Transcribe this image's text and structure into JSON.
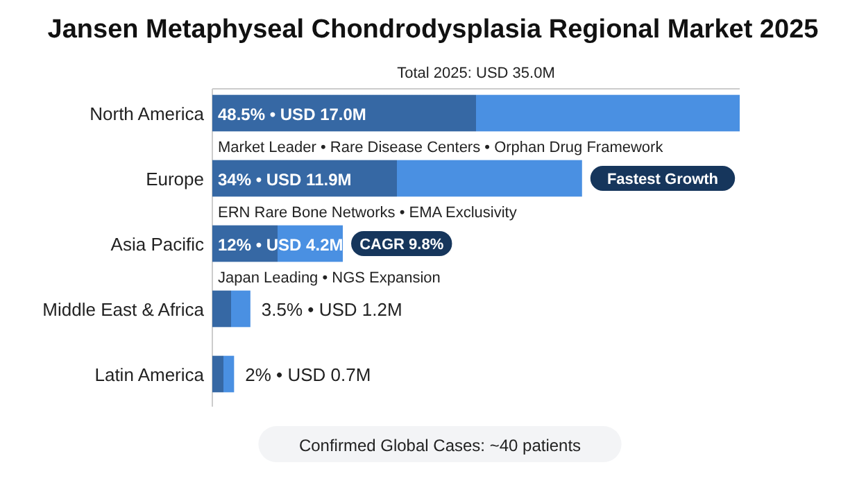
{
  "chart_data": {
    "type": "bar",
    "orientation": "horizontal",
    "title": "Jansen Metaphyseal Chondrodysplasia Regional Market 2025",
    "subtitle": "Total 2025: USD 35.0M",
    "categories": [
      "North America",
      "Europe",
      "Asia Pacific",
      "Middle East & Africa",
      "Latin America"
    ],
    "series": [
      {
        "color": "#4a90e2",
        "values": [
          48.5,
          34,
          12,
          3.5,
          2
        ],
        "value_labels": [
          "48.5% • USD 17.0M",
          "34% • USD 11.9M",
          "12% • USD 4.2M",
          "3.5% • USD 1.2M",
          "2% • USD 0.7M"
        ]
      }
    ],
    "annotations": [
      "Market Leader • Rare Disease Centers • Orphan Drug Framework",
      "ERN Rare Bone Networks • EMA Exclusivity",
      {
        "text": "Fastest Growth",
        "x": 34,
        "y": "Europe"
      },
      {
        "text": "CAGR 9.8%",
        "x": 12,
        "y": "Asia Pacific"
      },
      "Japan Leading • NGS Expansion",
      "Confirmed Global Cases: ~40 patients"
    ]
  }
}
